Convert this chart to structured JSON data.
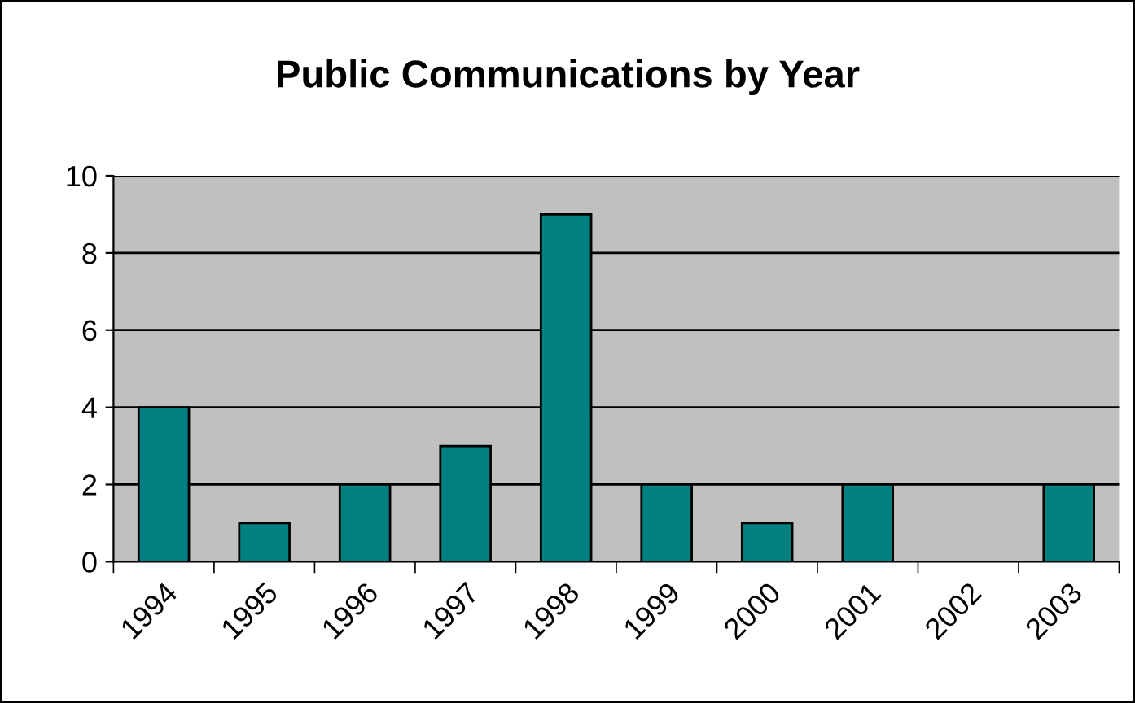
{
  "chart_data": {
    "type": "bar",
    "title": "Public Communications by Year",
    "categories": [
      "1994",
      "1995",
      "1996",
      "1997",
      "1998",
      "1999",
      "2000",
      "2001",
      "2002",
      "2003"
    ],
    "values": [
      4,
      1,
      2,
      3,
      9,
      2,
      1,
      2,
      0,
      2
    ],
    "color": "#008080",
    "ylim": [
      0,
      10
    ],
    "yticks": [
      0,
      2,
      4,
      6,
      8,
      10
    ],
    "grid": "y",
    "legend": false
  }
}
